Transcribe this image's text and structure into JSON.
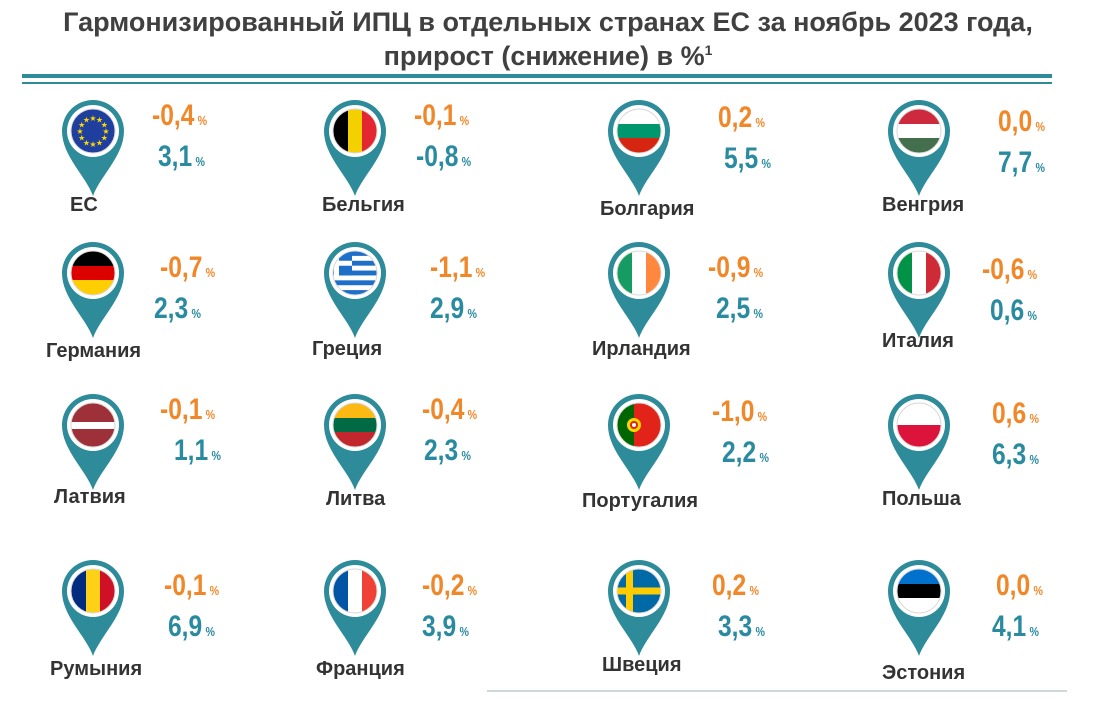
{
  "title": {
    "line1": "Гармонизированный ИПЦ в отдельных странах ЕС за ноябрь 2023 года,",
    "line2": "прирост (снижение) в %",
    "footnote": "1"
  },
  "legend": {
    "mom_color": "#f0882a",
    "yoy_color": "#2a8ba0",
    "accent": "#2e8b9a"
  },
  "countries": [
    {
      "name": "ЕС",
      "mom": "-0,4",
      "yoy": "3,1",
      "unit": "%",
      "flag": "eu-flag"
    },
    {
      "name": "Бельгия",
      "mom": "-0,1",
      "yoy": "-0,8",
      "unit": "%",
      "flag": "belgium-flag"
    },
    {
      "name": "Болгария",
      "mom": "0,2",
      "yoy": "5,5",
      "unit": "%",
      "flag": "bulgaria-flag"
    },
    {
      "name": "Венгрия",
      "mom": "0,0",
      "yoy": "7,7",
      "unit": "%",
      "flag": "hungary-flag"
    },
    {
      "name": "Германия",
      "mom": "-0,7",
      "yoy": "2,3",
      "unit": "%",
      "flag": "germany-flag"
    },
    {
      "name": "Греция",
      "mom": "-1,1",
      "yoy": "2,9",
      "unit": "%",
      "flag": "greece-flag"
    },
    {
      "name": "Ирландия",
      "mom": "-0,9",
      "yoy": "2,5",
      "unit": "%",
      "flag": "ireland-flag"
    },
    {
      "name": "Италия",
      "mom": "-0,6",
      "yoy": "0,6",
      "unit": "%",
      "flag": "italy-flag"
    },
    {
      "name": "Латвия",
      "mom": "-0,1",
      "yoy": "1,1",
      "unit": "%",
      "flag": "latvia-flag"
    },
    {
      "name": "Литва",
      "mom": "-0,4",
      "yoy": "2,3",
      "unit": "%",
      "flag": "lithuania-flag"
    },
    {
      "name": "Португалия",
      "mom": "-1,0",
      "yoy": "2,2",
      "unit": "%",
      "flag": "portugal-flag"
    },
    {
      "name": "Польша",
      "mom": "0,6",
      "yoy": "6,3",
      "unit": "%",
      "flag": "poland-flag"
    },
    {
      "name": "Румыния",
      "mom": "-0,1",
      "yoy": "6,9",
      "unit": "%",
      "flag": "romania-flag"
    },
    {
      "name": "Франция",
      "mom": "-0,2",
      "yoy": "3,9",
      "unit": "%",
      "flag": "france-flag"
    },
    {
      "name": "Швеция",
      "mom": "0,2",
      "yoy": "3,3",
      "unit": "%",
      "flag": "sweden-flag"
    },
    {
      "name": "Эстония",
      "mom": "0,0",
      "yoy": "4,1",
      "unit": "%",
      "flag": "estonia-flag"
    }
  ]
}
